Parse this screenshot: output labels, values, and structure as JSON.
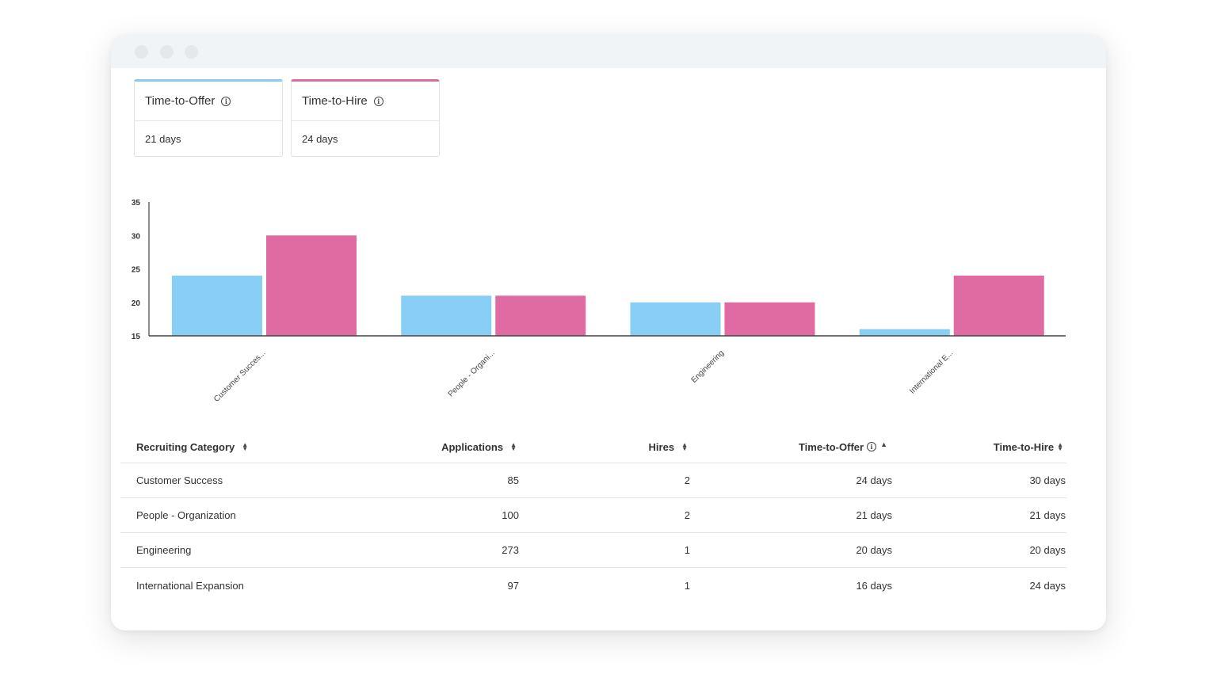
{
  "window": {
    "buttons": [
      "close",
      "minimize",
      "maximize"
    ]
  },
  "kpis": {
    "offer": {
      "label": "Time-to-Offer",
      "value": "21 days",
      "accent": "#88cbf0",
      "icon": "info-icon"
    },
    "hire": {
      "label": "Time-to-Hire",
      "value": "24 days",
      "accent": "#e06a9f",
      "icon": "info-icon"
    }
  },
  "chart_data": {
    "type": "bar",
    "categories": [
      "Customer Succes...",
      "People - Organi...",
      "Engineering",
      "International E..."
    ],
    "series": [
      {
        "values": [
          24,
          21,
          20,
          16
        ],
        "color": "#88cef5"
      },
      {
        "values": [
          30,
          21,
          20,
          24
        ],
        "color": "#df6ba2"
      }
    ],
    "ylim": [
      15,
      35
    ],
    "yticks": [
      "35",
      "30",
      "25",
      "20",
      "15"
    ],
    "grid": false
  },
  "table": {
    "headers": {
      "category": "Recruiting Category",
      "applications": "Applications",
      "hires": "Hires",
      "offer": "Time-to-Offer",
      "hire": "Time-to-Hire"
    },
    "rows": [
      {
        "category": "Customer Success",
        "applications": "85",
        "hires": "2",
        "offer": "24 days",
        "hire": "30 days"
      },
      {
        "category": "People - Organization",
        "applications": "100",
        "hires": "2",
        "offer": "21 days",
        "hire": "21 days"
      },
      {
        "category": "Engineering",
        "applications": "273",
        "hires": "1",
        "offer": "20 days",
        "hire": "20 days"
      },
      {
        "category": "International Expansion",
        "applications": "97",
        "hires": "1",
        "offer": "16 days",
        "hire": "24 days"
      }
    ]
  }
}
